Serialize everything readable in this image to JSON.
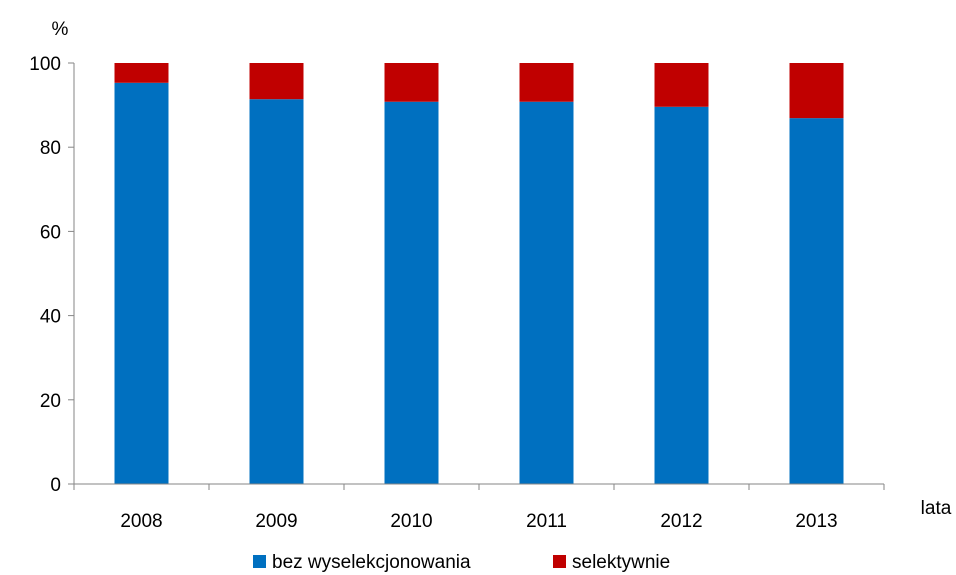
{
  "chart_data": {
    "type": "bar",
    "stacked": true,
    "categories": [
      "2008",
      "2009",
      "2010",
      "2011",
      "2012",
      "2013"
    ],
    "series": [
      {
        "name": "bez wyselekcjonowania",
        "color": "#0070C0",
        "values": [
          95.3,
          91.4,
          90.8,
          90.8,
          89.6,
          86.9
        ]
      },
      {
        "name": "selektywnie",
        "color": "#C00000",
        "values": [
          4.7,
          8.6,
          9.2,
          9.2,
          10.4,
          13.1
        ]
      }
    ],
    "y_unit_label": "%",
    "xlabel": "lata",
    "ylim": [
      0,
      100
    ],
    "yticks": [
      "0",
      "20",
      "40",
      "60",
      "80",
      "100"
    ],
    "grid": false,
    "legend_position": "bottom"
  }
}
